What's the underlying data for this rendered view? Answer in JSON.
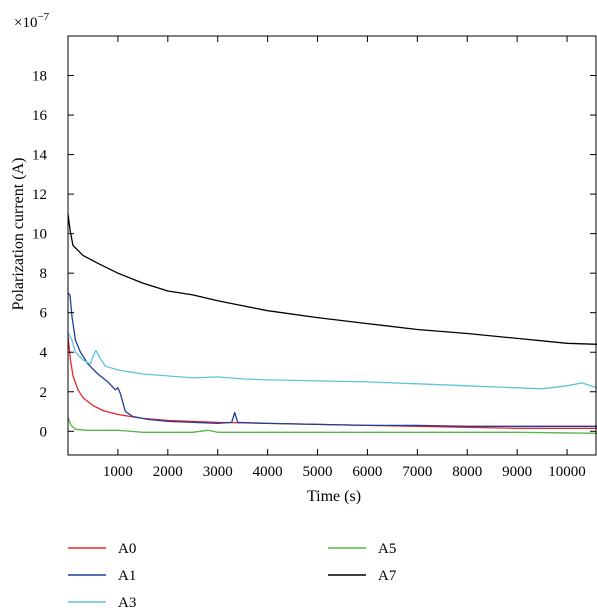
{
  "chart_data": {
    "type": "line",
    "title": "",
    "xlabel": "Time (s)",
    "ylabel": "Polarization current (A)",
    "y_multiplier": "×10",
    "y_exponent": "−7",
    "xlim": [
      0,
      10600
    ],
    "ylim": [
      -1.2,
      20
    ],
    "xticks": [
      1000,
      2000,
      3000,
      4000,
      5000,
      6000,
      7000,
      8000,
      9000,
      10000
    ],
    "yticks": [
      0,
      2,
      4,
      6,
      8,
      10,
      12,
      14,
      16,
      18
    ],
    "grid": false,
    "legend_position": "bottom",
    "series": [
      {
        "name": "A0",
        "color": "#e8262b",
        "points": [
          [
            0,
            4.8
          ],
          [
            50,
            3.6
          ],
          [
            100,
            2.8
          ],
          [
            200,
            2.1
          ],
          [
            300,
            1.7
          ],
          [
            500,
            1.3
          ],
          [
            700,
            1.05
          ],
          [
            1000,
            0.85
          ],
          [
            1500,
            0.65
          ],
          [
            2000,
            0.55
          ],
          [
            3000,
            0.45
          ],
          [
            4000,
            0.4
          ],
          [
            5000,
            0.35
          ],
          [
            6000,
            0.3
          ],
          [
            7000,
            0.25
          ],
          [
            8000,
            0.2
          ],
          [
            9000,
            0.15
          ],
          [
            10000,
            0.15
          ],
          [
            10600,
            0.15
          ]
        ]
      },
      {
        "name": "A1",
        "color": "#1f3e9a",
        "points": [
          [
            0,
            7.0
          ],
          [
            40,
            6.9
          ],
          [
            80,
            5.8
          ],
          [
            150,
            4.6
          ],
          [
            250,
            4.0
          ],
          [
            400,
            3.4
          ],
          [
            600,
            2.9
          ],
          [
            800,
            2.5
          ],
          [
            950,
            2.1
          ],
          [
            1000,
            2.2
          ],
          [
            1050,
            1.9
          ],
          [
            1150,
            1.0
          ],
          [
            1300,
            0.75
          ],
          [
            1600,
            0.6
          ],
          [
            2000,
            0.5
          ],
          [
            2500,
            0.45
          ],
          [
            3000,
            0.4
          ],
          [
            3280,
            0.45
          ],
          [
            3340,
            0.95
          ],
          [
            3400,
            0.45
          ],
          [
            4000,
            0.4
          ],
          [
            5000,
            0.35
          ],
          [
            6000,
            0.3
          ],
          [
            7000,
            0.3
          ],
          [
            8000,
            0.25
          ],
          [
            9000,
            0.25
          ],
          [
            10000,
            0.25
          ],
          [
            10600,
            0.25
          ]
        ]
      },
      {
        "name": "A3",
        "color": "#5fc4d6",
        "points": [
          [
            0,
            5.0
          ],
          [
            80,
            4.6
          ],
          [
            150,
            4.0
          ],
          [
            300,
            3.6
          ],
          [
            450,
            3.4
          ],
          [
            500,
            3.8
          ],
          [
            560,
            4.1
          ],
          [
            640,
            3.7
          ],
          [
            750,
            3.3
          ],
          [
            1000,
            3.1
          ],
          [
            1500,
            2.9
          ],
          [
            2000,
            2.8
          ],
          [
            2500,
            2.7
          ],
          [
            3000,
            2.75
          ],
          [
            3500,
            2.65
          ],
          [
            4000,
            2.6
          ],
          [
            5000,
            2.55
          ],
          [
            6000,
            2.5
          ],
          [
            6500,
            2.45
          ],
          [
            7000,
            2.4
          ],
          [
            8000,
            2.3
          ],
          [
            9000,
            2.2
          ],
          [
            9500,
            2.15
          ],
          [
            10000,
            2.3
          ],
          [
            10300,
            2.45
          ],
          [
            10600,
            2.2
          ]
        ]
      },
      {
        "name": "A5",
        "color": "#55b848",
        "points": [
          [
            0,
            0.7
          ],
          [
            60,
            0.3
          ],
          [
            150,
            0.1
          ],
          [
            400,
            0.05
          ],
          [
            1000,
            0.05
          ],
          [
            1500,
            -0.05
          ],
          [
            2500,
            -0.05
          ],
          [
            2800,
            0.05
          ],
          [
            3000,
            -0.05
          ],
          [
            5000,
            -0.05
          ],
          [
            7000,
            -0.05
          ],
          [
            9000,
            -0.05
          ],
          [
            10600,
            -0.1
          ]
        ]
      },
      {
        "name": "A7",
        "color": "#000000",
        "points": [
          [
            0,
            11.0
          ],
          [
            40,
            10.2
          ],
          [
            100,
            9.4
          ],
          [
            300,
            8.9
          ],
          [
            600,
            8.5
          ],
          [
            1000,
            8.0
          ],
          [
            1500,
            7.5
          ],
          [
            2000,
            7.1
          ],
          [
            2500,
            6.9
          ],
          [
            3000,
            6.6
          ],
          [
            3500,
            6.35
          ],
          [
            4000,
            6.1
          ],
          [
            5000,
            5.75
          ],
          [
            6000,
            5.45
          ],
          [
            7000,
            5.15
          ],
          [
            8000,
            4.95
          ],
          [
            9000,
            4.7
          ],
          [
            10000,
            4.45
          ],
          [
            10600,
            4.4
          ]
        ]
      }
    ]
  }
}
